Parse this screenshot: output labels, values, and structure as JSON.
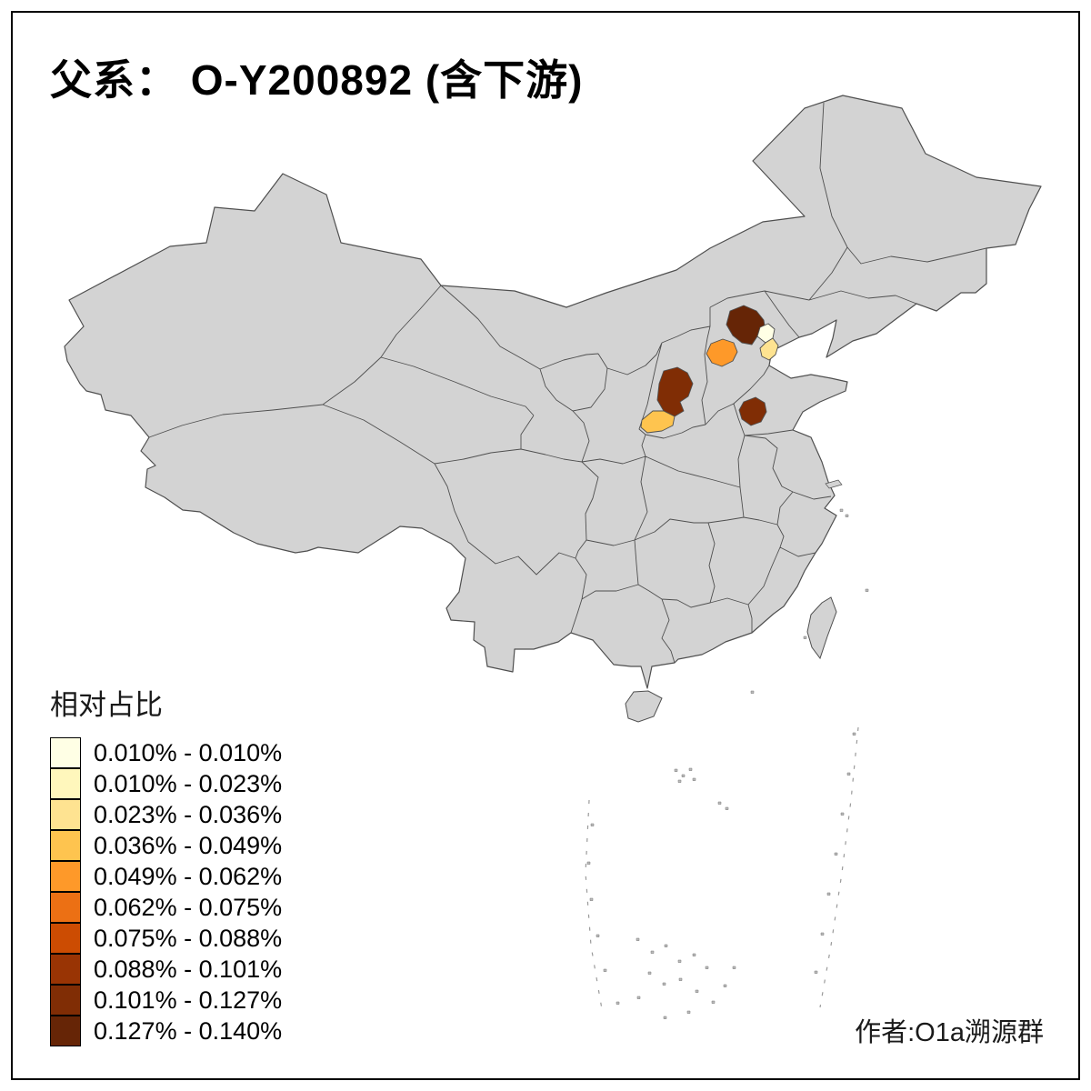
{
  "figure": {
    "title": "父系： O-Y200892 (含下游)",
    "author_credit": "作者:O1a溯源群"
  },
  "legend": {
    "title": "相对占比",
    "classes": [
      {
        "label": "0.010% - 0.010%",
        "color": "#FFFFE5"
      },
      {
        "label": "0.010% - 0.023%",
        "color": "#FFF7BC"
      },
      {
        "label": "0.023% - 0.036%",
        "color": "#FEE391"
      },
      {
        "label": "0.036% - 0.049%",
        "color": "#FEC44F"
      },
      {
        "label": "0.049% - 0.062%",
        "color": "#FE9929"
      },
      {
        "label": "0.062% - 0.075%",
        "color": "#EC7014"
      },
      {
        "label": "0.075% - 0.088%",
        "color": "#CC4C02"
      },
      {
        "label": "0.088% - 0.101%",
        "color": "#993404"
      },
      {
        "label": "0.101% - 0.127%",
        "color": "#802D05"
      },
      {
        "label": "0.127% - 0.140%",
        "color": "#662506"
      }
    ]
  },
  "map": {
    "base_fill": "#D3D3D3",
    "border_stroke": "#4F4F4F",
    "background": "#FFFFFF",
    "frame_color": "#000000",
    "no_data_meaning": "gray = no highlighted value",
    "highlighted_regions": [
      {
        "id": "region-1",
        "location_hint": "Beijing vicinity",
        "class_index": 10,
        "range": "0.127% - 0.140%"
      },
      {
        "id": "region-2",
        "location_hint": "east of Beijing",
        "class_index": 1,
        "range": "0.010% - 0.010%"
      },
      {
        "id": "region-3",
        "location_hint": "Tianjin vicinity",
        "class_index": 3,
        "range": "0.023% - 0.036%"
      },
      {
        "id": "region-4",
        "location_hint": "central Hebei",
        "class_index": 5,
        "range": "0.049% - 0.062%"
      },
      {
        "id": "region-5",
        "location_hint": "central Shanxi",
        "class_index": 9,
        "range": "0.101% - 0.127%"
      },
      {
        "id": "region-6",
        "location_hint": "southwest Shanxi",
        "class_index": 4,
        "range": "0.036% - 0.049%"
      },
      {
        "id": "region-7",
        "location_hint": "west Shandong",
        "class_index": 9,
        "range": "0.101% - 0.127%"
      }
    ]
  },
  "chart_data": {
    "type": "choropleth",
    "title": "父系： O-Y200892 (含下游)",
    "legend_title": "相对占比",
    "unit": "%",
    "classes": [
      "0.010% - 0.010%",
      "0.010% - 0.023%",
      "0.023% - 0.036%",
      "0.036% - 0.049%",
      "0.049% - 0.062%",
      "0.062% - 0.075%",
      "0.075% - 0.088%",
      "0.088% - 0.101%",
      "0.101% - 0.127%",
      "0.127% - 0.140%"
    ],
    "colors": [
      "#FFFFE5",
      "#FFF7BC",
      "#FEE391",
      "#FEC44F",
      "#FE9929",
      "#EC7014",
      "#CC4C02",
      "#993404",
      "#802D05",
      "#662506"
    ],
    "highlighted_regions": [
      {
        "region": "region-1 (Beijing vicinity)",
        "class": "0.127% - 0.140%"
      },
      {
        "region": "region-2 (east of Beijing)",
        "class": "0.010% - 0.010%"
      },
      {
        "region": "region-3 (Tianjin vicinity)",
        "class": "0.023% - 0.036%"
      },
      {
        "region": "region-4 (central Hebei)",
        "class": "0.049% - 0.062%"
      },
      {
        "region": "region-5 (central Shanxi)",
        "class": "0.101% - 0.127%"
      },
      {
        "region": "region-6 (southwest Shanxi)",
        "class": "0.036% - 0.049%"
      },
      {
        "region": "region-7 (west Shandong)",
        "class": "0.101% - 0.127%"
      }
    ]
  }
}
